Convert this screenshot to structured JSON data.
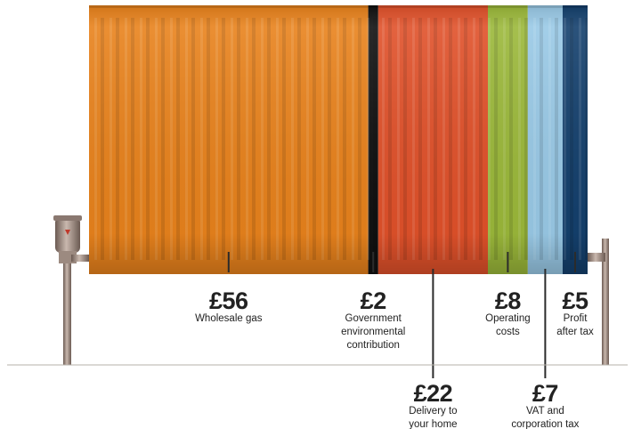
{
  "chart_data": {
    "type": "bar",
    "orientation": "horizontal-stacked",
    "categories": [
      "Wholesale gas",
      "Government environmental contribution",
      "Delivery to your home",
      "Operating costs",
      "VAT and corporation tax",
      "Profit after tax"
    ],
    "values": [
      56,
      2,
      22,
      8,
      7,
      5
    ],
    "segments": [
      {
        "amount": "£56",
        "label_lines": [
          "Wholesale gas"
        ],
        "value": 56,
        "color": "#e8821c",
        "label_side": "above"
      },
      {
        "amount": "£2",
        "label_lines": [
          "Government",
          "environmental",
          "contribution"
        ],
        "value": 2,
        "color": "#121212",
        "label_side": "above"
      },
      {
        "amount": "£22",
        "label_lines": [
          "Delivery to",
          "your home"
        ],
        "value": 22,
        "color": "#e0512a",
        "label_side": "below"
      },
      {
        "amount": "£8",
        "label_lines": [
          "Operating",
          "costs"
        ],
        "value": 8,
        "color": "#9bb83a",
        "label_side": "above"
      },
      {
        "amount": "£7",
        "label_lines": [
          "VAT and",
          "corporation tax"
        ],
        "value": 7,
        "color": "#99c9e6",
        "label_side": "below"
      },
      {
        "amount": "£5",
        "label_lines": [
          "Profit",
          "after tax"
        ],
        "value": 5,
        "color": "#14406d",
        "label_side": "above"
      }
    ],
    "title": "",
    "xlabel": "",
    "ylabel": ""
  }
}
